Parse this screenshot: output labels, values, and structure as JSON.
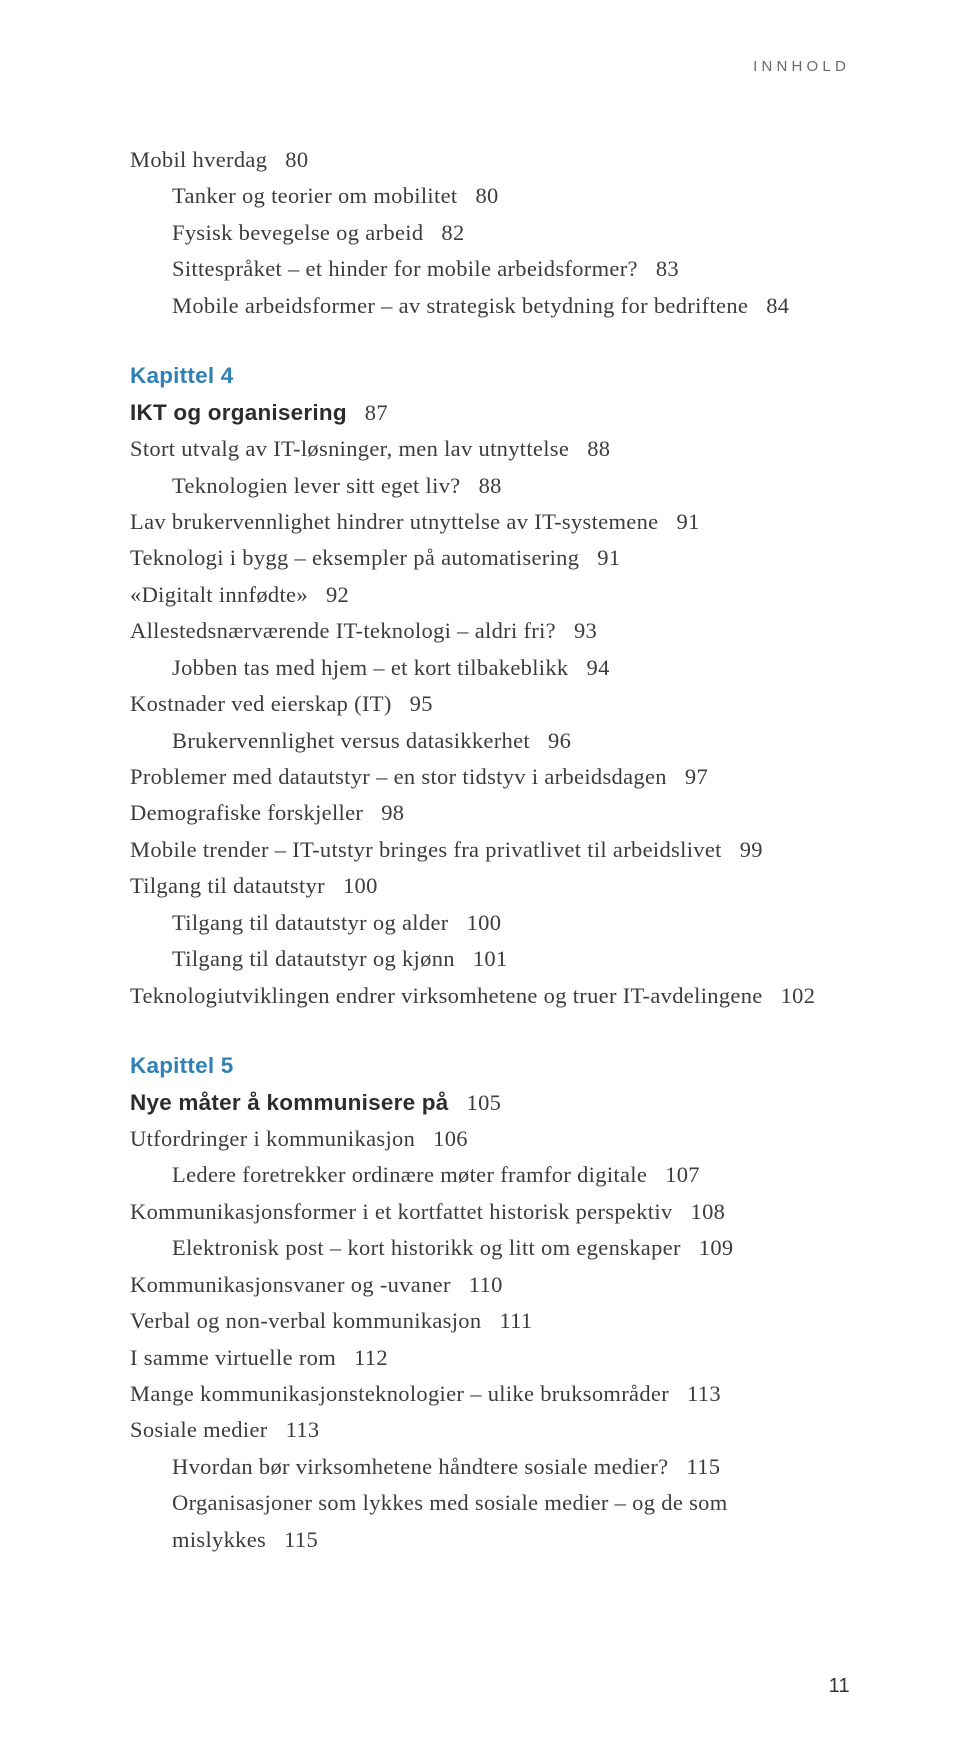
{
  "running_head": "INNHOLD",
  "page_number": "11",
  "block1": {
    "e0": {
      "t": "Mobil hverdag",
      "p": "80",
      "indent": 0
    },
    "e1": {
      "t": "Tanker og teorier om mobilitet",
      "p": "80",
      "indent": 1
    },
    "e2": {
      "t": "Fysisk bevegelse og arbeid",
      "p": "82",
      "indent": 1
    },
    "e3": {
      "t": "Sittespråket – et hinder for mobile arbeidsformer?",
      "p": "83",
      "indent": 1
    },
    "e4": {
      "t": "Mobile arbeidsformer – av strategisk betydning for bedriftene",
      "p": "84",
      "indent": 1
    }
  },
  "ch4": {
    "label": "Kapittel 4",
    "title": "IKT og organisering",
    "title_page": "87",
    "e0": {
      "t": "Stort utvalg av IT-løsninger, men lav utnyttelse",
      "p": "88",
      "indent": 0
    },
    "e1": {
      "t": "Teknologien lever sitt eget liv?",
      "p": "88",
      "indent": 1
    },
    "e2": {
      "t": "Lav brukervennlighet hindrer utnyttelse av IT-systemene",
      "p": "91",
      "indent": 0
    },
    "e3": {
      "t": "Teknologi i bygg – eksempler på automatisering",
      "p": "91",
      "indent": 0
    },
    "e4": {
      "t": "«Digitalt innfødte»",
      "p": "92",
      "indent": 0
    },
    "e5": {
      "t": "Allestedsnærværende IT-teknologi – aldri fri?",
      "p": "93",
      "indent": 0
    },
    "e6": {
      "t": "Jobben tas med hjem – et kort tilbakeblikk",
      "p": "94",
      "indent": 1
    },
    "e7": {
      "t": "Kostnader ved eierskap (IT)",
      "p": "95",
      "indent": 0
    },
    "e8": {
      "t": "Brukervennlighet versus datasikkerhet",
      "p": "96",
      "indent": 1
    },
    "e9": {
      "t": "Problemer med datautstyr – en stor tidstyv i arbeidsdagen",
      "p": "97",
      "indent": 0
    },
    "e10": {
      "t": "Demografiske forskjeller",
      "p": "98",
      "indent": 0
    },
    "e11": {
      "t": "Mobile trender – IT-utstyr bringes fra privatlivet til arbeidslivet",
      "p": "99",
      "indent": 0
    },
    "e12": {
      "t": "Tilgang til datautstyr",
      "p": "100",
      "indent": 0
    },
    "e13": {
      "t": "Tilgang til datautstyr og alder",
      "p": "100",
      "indent": 1
    },
    "e14": {
      "t": "Tilgang til datautstyr og kjønn",
      "p": "101",
      "indent": 1
    },
    "e15": {
      "t": "Teknologiutviklingen endrer virksomhetene og truer IT-avdelingene",
      "p": "102",
      "indent": 0
    }
  },
  "ch5": {
    "label": "Kapittel 5",
    "title": "Nye måter å kommunisere på",
    "title_page": "105",
    "e0": {
      "t": "Utfordringer i kommunikasjon",
      "p": "106",
      "indent": 0
    },
    "e1": {
      "t": "Ledere foretrekker ordinære møter framfor digitale",
      "p": "107",
      "indent": 1
    },
    "e2": {
      "t": "Kommunikasjonsformer i et kortfattet historisk perspektiv",
      "p": "108",
      "indent": 0
    },
    "e3": {
      "t": "Elektronisk post – kort historikk og litt om egenskaper",
      "p": "109",
      "indent": 1
    },
    "e4": {
      "t": "Kommunikasjonsvaner og -uvaner",
      "p": "110",
      "indent": 0
    },
    "e5": {
      "t": "Verbal og non-verbal kommunikasjon",
      "p": "111",
      "indent": 0
    },
    "e6": {
      "t": "I samme virtuelle rom",
      "p": "112",
      "indent": 0
    },
    "e7": {
      "t": "Mange kommunikasjonsteknologier – ulike bruksområder",
      "p": "113",
      "indent": 0
    },
    "e8": {
      "t": "Sosiale medier",
      "p": "113",
      "indent": 0
    },
    "e9": {
      "t": "Hvordan bør virksomhetene håndtere sosiale medier?",
      "p": "115",
      "indent": 1
    },
    "e10_a": {
      "t": "Organisasjoner som lykkes med sosiale medier – og de som",
      "indent": 1
    },
    "e10_b": {
      "t": "mislykkes",
      "p": "115",
      "indent": 1
    }
  }
}
